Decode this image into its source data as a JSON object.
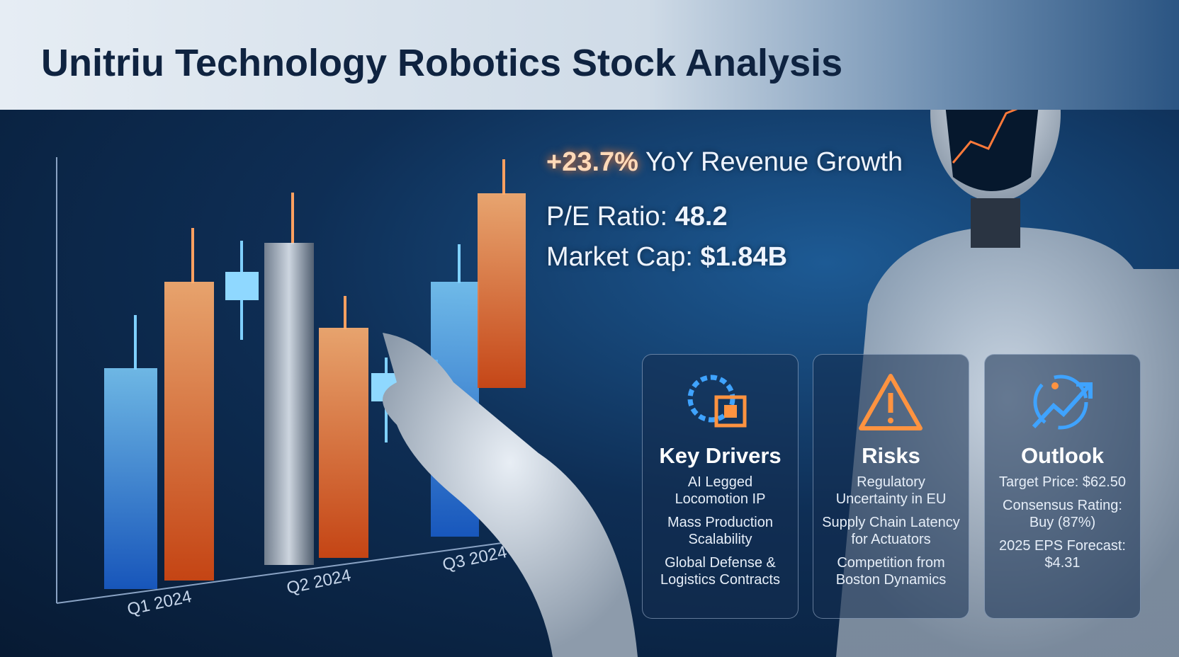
{
  "header": {
    "title": "Unitriu Technology Robotics Stock Analysis"
  },
  "metrics": [
    {
      "value": "+23.7%",
      "label": "YoY Revenue Growth"
    },
    {
      "label": "P/E Ratio:",
      "value": "48.2"
    },
    {
      "label": "Market Cap:",
      "value": "$1.84B"
    }
  ],
  "chart": {
    "labels": [
      "Q1 2024",
      "Q2 2024",
      "Q3 2024"
    ]
  },
  "cards": [
    {
      "title": "Key Drivers",
      "items": [
        "AI Legged Locomotion IP",
        "Mass Production Scalability",
        "Global Defense & Logistics Contracts"
      ]
    },
    {
      "title": "Risks",
      "items": [
        "Regulatory Uncertainty in EU",
        "Supply Chain Latency for Actuators",
        "Competition from Boston Dynamics"
      ]
    },
    {
      "title": "Outlook",
      "items": [
        "Target Price: $62.50",
        "Consensus Rating: Buy (87%)",
        "2025 EPS Forecast: $4.31"
      ]
    }
  ]
}
